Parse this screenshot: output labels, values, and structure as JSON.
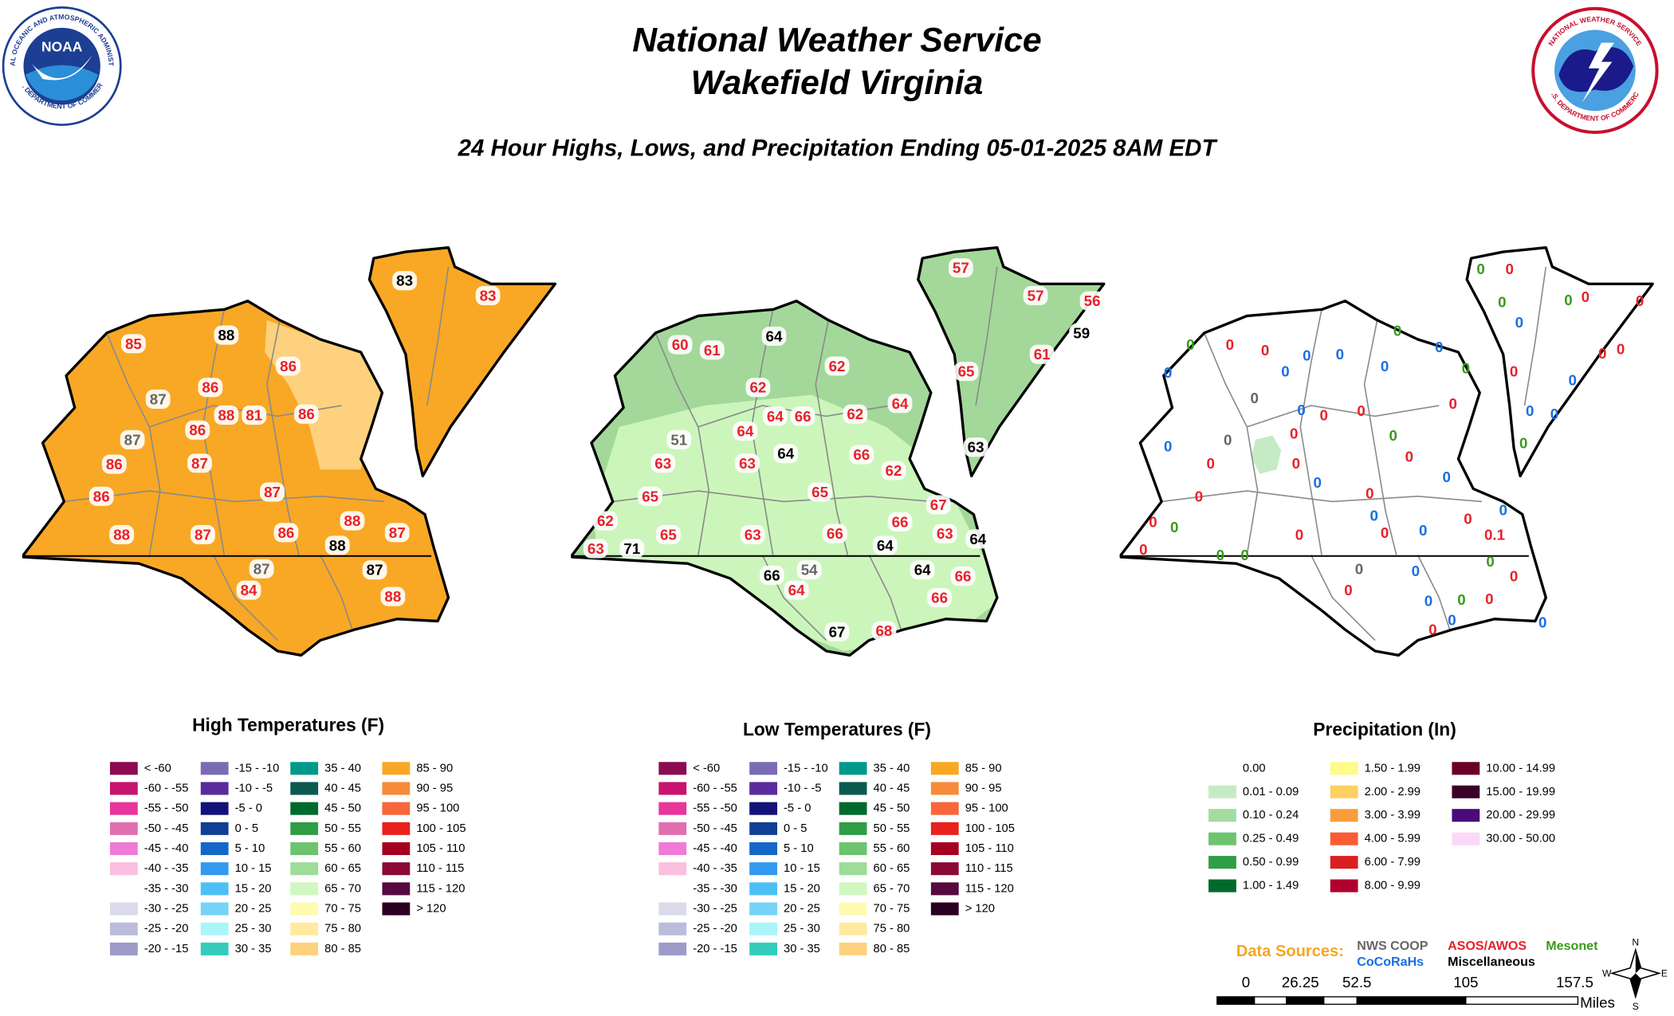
{
  "header": {
    "title_line1": "National Weather Service",
    "title_line2": "Wakefield Virginia",
    "subtitle": "24 Hour Highs, Lows, and Precipitation Ending 05-01-2025 8AM EDT"
  },
  "logos": {
    "noaa": {
      "label": "NOAA",
      "top_text": "NATIONAL OCEANIC AND ATMOSPHERIC ADMINISTRATION",
      "bottom_text": "U.S. DEPARTMENT OF COMMERCE"
    },
    "nws": {
      "top_text": "NATIONAL WEATHER SERVICE",
      "bottom_text": "U.S. DEPARTMENT OF COMMERCE"
    }
  },
  "maps": [
    {
      "fill": "#f9a825",
      "inner_fill": "#fdd17e",
      "stations": [
        {
          "value": 83,
          "color": "#000000"
        },
        {
          "value": 83,
          "color": "#e8212b"
        },
        {
          "value": 85,
          "color": "#e8212b"
        },
        {
          "value": 88,
          "color": "#000000"
        },
        {
          "value": 86,
          "color": "#e8212b"
        },
        {
          "value": 87,
          "color": "#666666"
        },
        {
          "value": 86,
          "color": "#e8212b"
        },
        {
          "value": 88,
          "color": "#e8212b"
        },
        {
          "value": 81,
          "color": "#e8212b"
        },
        {
          "value": 86,
          "color": "#e8212b"
        },
        {
          "value": 87,
          "color": "#666666"
        },
        {
          "value": 86,
          "color": "#e8212b"
        },
        {
          "value": 86,
          "color": "#e8212b"
        },
        {
          "value": 87,
          "color": "#e8212b"
        },
        {
          "value": 87,
          "color": "#e8212b"
        },
        {
          "value": 86,
          "color": "#e8212b"
        },
        {
          "value": 88,
          "color": "#e8212b"
        },
        {
          "value": 87,
          "color": "#e8212b"
        },
        {
          "value": 86,
          "color": "#e8212b"
        },
        {
          "value": 88,
          "color": "#e8212b"
        },
        {
          "value": 87,
          "color": "#e8212b"
        },
        {
          "value": 88,
          "color": "#000000"
        },
        {
          "value": 87,
          "color": "#666666"
        },
        {
          "value": 87,
          "color": "#000000"
        },
        {
          "value": 84,
          "color": "#e8212b"
        },
        {
          "value": 88,
          "color": "#e8212b"
        }
      ]
    },
    {
      "fill": "#a3d89a",
      "inner_fill": "#ccf5bb",
      "stations": [
        {
          "value": 57,
          "color": "#e8212b"
        },
        {
          "value": 57,
          "color": "#e8212b"
        },
        {
          "value": 56,
          "color": "#e8212b"
        },
        {
          "value": 60,
          "color": "#e8212b"
        },
        {
          "value": 61,
          "color": "#e8212b"
        },
        {
          "value": 64,
          "color": "#000000"
        },
        {
          "value": 62,
          "color": "#e8212b"
        },
        {
          "value": 59,
          "color": "#000000"
        },
        {
          "value": 61,
          "color": "#e8212b"
        },
        {
          "value": 65,
          "color": "#e8212b"
        },
        {
          "value": 62,
          "color": "#e8212b"
        },
        {
          "value": 64,
          "color": "#e8212b"
        },
        {
          "value": 66,
          "color": "#e8212b"
        },
        {
          "value": 62,
          "color": "#e8212b"
        },
        {
          "value": 64,
          "color": "#e8212b"
        },
        {
          "value": 51,
          "color": "#666666"
        },
        {
          "value": 64,
          "color": "#e8212b"
        },
        {
          "value": 64,
          "color": "#000000"
        },
        {
          "value": 63,
          "color": "#e8212b"
        },
        {
          "value": 63,
          "color": "#e8212b"
        },
        {
          "value": 66,
          "color": "#e8212b"
        },
        {
          "value": 62,
          "color": "#e8212b"
        },
        {
          "value": 63,
          "color": "#000000"
        },
        {
          "value": 65,
          "color": "#e8212b"
        },
        {
          "value": 65,
          "color": "#e8212b"
        },
        {
          "value": 67,
          "color": "#e8212b"
        },
        {
          "value": 66,
          "color": "#e8212b"
        },
        {
          "value": 63,
          "color": "#e8212b"
        },
        {
          "value": 64,
          "color": "#000000"
        },
        {
          "value": 62,
          "color": "#e8212b"
        },
        {
          "value": 65,
          "color": "#e8212b"
        },
        {
          "value": 63,
          "color": "#e8212b"
        },
        {
          "value": 66,
          "color": "#e8212b"
        },
        {
          "value": 64,
          "color": "#000000"
        },
        {
          "value": 63,
          "color": "#e8212b"
        },
        {
          "value": 71,
          "color": "#000000"
        },
        {
          "value": 66,
          "color": "#000000"
        },
        {
          "value": 54,
          "color": "#666666"
        },
        {
          "value": 64,
          "color": "#000000"
        },
        {
          "value": 66,
          "color": "#e8212b"
        },
        {
          "value": 64,
          "color": "#e8212b"
        },
        {
          "value": 66,
          "color": "#e8212b"
        },
        {
          "value": 67,
          "color": "#000000"
        },
        {
          "value": 68,
          "color": "#e8212b"
        }
      ]
    },
    {
      "fill": "#ffffff",
      "inner_fill": "#c5ebc5",
      "stations": [
        {
          "value": 0,
          "color": "#3a9a1e"
        },
        {
          "value": 0,
          "color": "#e8212b"
        },
        {
          "value": 0,
          "color": "#3a9a1e"
        },
        {
          "value": 0,
          "color": "#3a9a1e"
        },
        {
          "value": 0,
          "color": "#e8212b"
        },
        {
          "value": 0,
          "color": "#e8212b"
        },
        {
          "value": 0,
          "color": "#3a9a1e"
        },
        {
          "value": 0,
          "color": "#e8212b"
        },
        {
          "value": 0,
          "color": "#e8212b"
        },
        {
          "value": 0,
          "color": "#1a6fe0"
        },
        {
          "value": 0,
          "color": "#1a6fe0"
        },
        {
          "value": 0,
          "color": "#3a9a1e"
        },
        {
          "value": 0,
          "color": "#1a6fe0"
        },
        {
          "value": 0,
          "color": "#1a6fe0"
        },
        {
          "value": 0,
          "color": "#e8212b"
        },
        {
          "value": 0,
          "color": "#e8212b"
        },
        {
          "value": 0,
          "color": "#1a6fe0"
        },
        {
          "value": 0,
          "color": "#1a6fe0"
        },
        {
          "value": 0,
          "color": "#1a6fe0"
        },
        {
          "value": 0,
          "color": "#3a9a1e"
        },
        {
          "value": 0,
          "color": "#e8212b"
        },
        {
          "value": 0,
          "color": "#1a6fe0"
        },
        {
          "value": 0,
          "color": "#666666"
        },
        {
          "value": 0,
          "color": "#1a6fe0"
        },
        {
          "value": 0,
          "color": "#e8212b"
        },
        {
          "value": 0,
          "color": "#e8212b"
        },
        {
          "value": 0,
          "color": "#1a6fe0"
        },
        {
          "value": 0,
          "color": "#1a6fe0"
        },
        {
          "value": 0,
          "color": "#e8212b"
        },
        {
          "value": 0,
          "color": "#666666"
        },
        {
          "value": 0,
          "color": "#e8212b"
        },
        {
          "value": 0,
          "color": "#3a9a1e"
        },
        {
          "value": 0,
          "color": "#1a6fe0"
        },
        {
          "value": 0,
          "color": "#e8212b"
        },
        {
          "value": 0,
          "color": "#e8212b"
        },
        {
          "value": 0,
          "color": "#1a6fe0"
        },
        {
          "value": 0,
          "color": "#e8212b"
        },
        {
          "value": 0,
          "color": "#1a6fe0"
        },
        {
          "value": 0,
          "color": "#e8212b"
        },
        {
          "value": 0,
          "color": "#e8212b"
        },
        {
          "value": 0,
          "color": "#1a6fe0"
        },
        {
          "value": 0,
          "color": "#e8212b"
        },
        {
          "value": 0,
          "color": "#3a9a1e"
        },
        {
          "value": 0,
          "color": "#e8212b"
        },
        {
          "value": 0,
          "color": "#e8212b"
        },
        {
          "value": 0,
          "color": "#1a6fe0"
        },
        {
          "value": 0,
          "color": "#e8212b"
        },
        {
          "value": 0.1,
          "color": "#e8212b"
        },
        {
          "value": 0,
          "color": "#1a6fe0"
        },
        {
          "value": 0,
          "color": "#e8212b"
        },
        {
          "value": 0,
          "color": "#3a9a1e"
        },
        {
          "value": 0,
          "color": "#3a9a1e"
        },
        {
          "value": 0,
          "color": "#666666"
        },
        {
          "value": 0,
          "color": "#1a6fe0"
        },
        {
          "value": 0,
          "color": "#3a9a1e"
        },
        {
          "value": 0,
          "color": "#e8212b"
        },
        {
          "value": 0,
          "color": "#e8212b"
        },
        {
          "value": 0,
          "color": "#1a6fe0"
        },
        {
          "value": 0,
          "color": "#3a9a1e"
        },
        {
          "value": 0,
          "color": "#e8212b"
        },
        {
          "value": 0,
          "color": "#1a6fe0"
        },
        {
          "value": 0,
          "color": "#1a6fe0"
        },
        {
          "value": 0,
          "color": "#e8212b"
        },
        {
          "value": 0,
          "color": "#3a9a1e"
        }
      ]
    }
  ],
  "legends": [
    {
      "title": "High Temperatures (F)",
      "columns": [
        [
          {
            "label": "< -60",
            "color": "#8b0a50"
          },
          {
            "label": "-60 - -55",
            "color": "#c8146e"
          },
          {
            "label": "-55 - -50",
            "color": "#e8359a"
          },
          {
            "label": "-50 - -45",
            "color": "#e070b0"
          },
          {
            "label": "-45 - -40",
            "color": "#f07ad8"
          },
          {
            "label": "-40 - -35",
            "color": "#fbbfe0"
          },
          {
            "label": "-35 - -30",
            "color": "#ffffff"
          },
          {
            "label": "-30 - -25",
            "color": "#dadaea"
          },
          {
            "label": "-25 - -20",
            "color": "#bcbcdc"
          },
          {
            "label": "-20 - -15",
            "color": "#9d9ac8"
          }
        ],
        [
          {
            "label": "-15 - -10",
            "color": "#7b6bb5"
          },
          {
            "label": "-10 - -5",
            "color": "#5a2b9b"
          },
          {
            "label": "-5 - 0",
            "color": "#12127a"
          },
          {
            "label": "0 - 5",
            "color": "#103f96"
          },
          {
            "label": "5 - 10",
            "color": "#1466c8"
          },
          {
            "label": "10 - 15",
            "color": "#3399f0"
          },
          {
            "label": "15 - 20",
            "color": "#4cc0f5"
          },
          {
            "label": "20 - 25",
            "color": "#76d3f8"
          },
          {
            "label": "25 - 30",
            "color": "#aaf5f8"
          },
          {
            "label": "30 - 35",
            "color": "#33ccbb"
          }
        ],
        [
          {
            "label": "35 - 40",
            "color": "#00998a"
          },
          {
            "label": "40 - 45",
            "color": "#0a5a4f"
          },
          {
            "label": "45 - 50",
            "color": "#006a2d"
          },
          {
            "label": "50 - 55",
            "color": "#2f9e45"
          },
          {
            "label": "55 - 60",
            "color": "#6ec36e"
          },
          {
            "label": "60 - 65",
            "color": "#9edc98"
          },
          {
            "label": "65 - 70",
            "color": "#d0f8c0"
          },
          {
            "label": "70 - 75",
            "color": "#fffbb0"
          },
          {
            "label": "75 - 80",
            "color": "#ffeaa0"
          },
          {
            "label": "80 - 85",
            "color": "#fdd17e"
          }
        ],
        [
          {
            "label": "85 - 90",
            "color": "#f9a825"
          },
          {
            "label": "90 - 95",
            "color": "#f98a3a"
          },
          {
            "label": "95 - 100",
            "color": "#f9663a"
          },
          {
            "label": "100 - 105",
            "color": "#e8211d"
          },
          {
            "label": "105 - 110",
            "color": "#a50021"
          },
          {
            "label": "110 - 115",
            "color": "#8b0a33"
          },
          {
            "label": "115 - 120",
            "color": "#570a40"
          },
          {
            "label": "> 120",
            "color": "#2a0020"
          }
        ]
      ]
    },
    {
      "title": "Low Temperatures (F)",
      "columns": [
        [
          {
            "label": "< -60",
            "color": "#8b0a50"
          },
          {
            "label": "-60 - -55",
            "color": "#c8146e"
          },
          {
            "label": "-55 - -50",
            "color": "#e8359a"
          },
          {
            "label": "-50 - -45",
            "color": "#e070b0"
          },
          {
            "label": "-45 - -40",
            "color": "#f07ad8"
          },
          {
            "label": "-40 - -35",
            "color": "#fbbfe0"
          },
          {
            "label": "-35 - -30",
            "color": "#ffffff"
          },
          {
            "label": "-30 - -25",
            "color": "#dadaea"
          },
          {
            "label": "-25 - -20",
            "color": "#bcbcdc"
          },
          {
            "label": "-20 - -15",
            "color": "#9d9ac8"
          }
        ],
        [
          {
            "label": "-15 - -10",
            "color": "#7b6bb5"
          },
          {
            "label": "-10 - -5",
            "color": "#5a2b9b"
          },
          {
            "label": "-5 - 0",
            "color": "#12127a"
          },
          {
            "label": "0 - 5",
            "color": "#103f96"
          },
          {
            "label": "5 - 10",
            "color": "#1466c8"
          },
          {
            "label": "10 - 15",
            "color": "#3399f0"
          },
          {
            "label": "15 - 20",
            "color": "#4cc0f5"
          },
          {
            "label": "20 - 25",
            "color": "#76d3f8"
          },
          {
            "label": "25 - 30",
            "color": "#aaf5f8"
          },
          {
            "label": "30 - 35",
            "color": "#33ccbb"
          }
        ],
        [
          {
            "label": "35 - 40",
            "color": "#00998a"
          },
          {
            "label": "40 - 45",
            "color": "#0a5a4f"
          },
          {
            "label": "45 - 50",
            "color": "#006a2d"
          },
          {
            "label": "50 - 55",
            "color": "#2f9e45"
          },
          {
            "label": "55 - 60",
            "color": "#6ec36e"
          },
          {
            "label": "60 - 65",
            "color": "#9edc98"
          },
          {
            "label": "65 - 70",
            "color": "#d0f8c0"
          },
          {
            "label": "70 - 75",
            "color": "#fffbb0"
          },
          {
            "label": "75 - 80",
            "color": "#ffeaa0"
          },
          {
            "label": "80 - 85",
            "color": "#fdd17e"
          }
        ],
        [
          {
            "label": "85 - 90",
            "color": "#f9a825"
          },
          {
            "label": "90 - 95",
            "color": "#f98a3a"
          },
          {
            "label": "95 - 100",
            "color": "#f9663a"
          },
          {
            "label": "100 - 105",
            "color": "#e8211d"
          },
          {
            "label": "105 - 110",
            "color": "#a50021"
          },
          {
            "label": "110 - 115",
            "color": "#8b0a33"
          },
          {
            "label": "115 - 120",
            "color": "#570a40"
          },
          {
            "label": "> 120",
            "color": "#2a0020"
          }
        ]
      ]
    },
    {
      "title": "Precipitation (In)",
      "columns": [
        [
          {
            "label": "0.00",
            "color": "#ffffff"
          },
          {
            "label": "0.01 - 0.09",
            "color": "#c5ebc5"
          },
          {
            "label": "0.10 - 0.24",
            "color": "#a2dca0"
          },
          {
            "label": "0.25 - 0.49",
            "color": "#6ec36e"
          },
          {
            "label": "0.50 - 0.99",
            "color": "#2f9e45"
          },
          {
            "label": "1.00 - 1.49",
            "color": "#006a2d"
          }
        ],
        [
          {
            "label": "1.50 - 1.99",
            "color": "#fffa8a"
          },
          {
            "label": "2.00 - 2.99",
            "color": "#fdd061"
          },
          {
            "label": "3.00 - 3.99",
            "color": "#fb9c3a"
          },
          {
            "label": "4.00 - 5.99",
            "color": "#f95c34"
          },
          {
            "label": "6.00 - 7.99",
            "color": "#d92020"
          },
          {
            "label": "8.00 - 9.99",
            "color": "#b00030"
          }
        ],
        [
          {
            "label": "10.00 - 14.99",
            "color": "#6a0028"
          },
          {
            "label": "15.00 - 19.99",
            "color": "#3a0028"
          },
          {
            "label": "20.00 - 29.99",
            "color": "#4b0a7a"
          },
          {
            "label": "30.00 - 50.00",
            "color": "#fbd8f8"
          }
        ]
      ]
    }
  ],
  "data_sources": {
    "label": "Data Sources:",
    "color": "#f5a623",
    "items": [
      {
        "label": "NWS COOP",
        "color": "#666666"
      },
      {
        "label": "CoCoRaHs",
        "color": "#1a6fe0"
      },
      {
        "label": "ASOS/AWOS",
        "color": "#e8212b"
      },
      {
        "label": "Miscellaneous",
        "color": "#000000"
      },
      {
        "label": "Mesonet",
        "color": "#3a9a1e"
      }
    ]
  },
  "scale_bar": {
    "ticks": [
      "0",
      "26.25",
      "52.5",
      "105",
      "157.5"
    ],
    "unit": "Miles"
  },
  "compass": {
    "north": "N",
    "east": "E",
    "south": "S",
    "west": "W"
  }
}
